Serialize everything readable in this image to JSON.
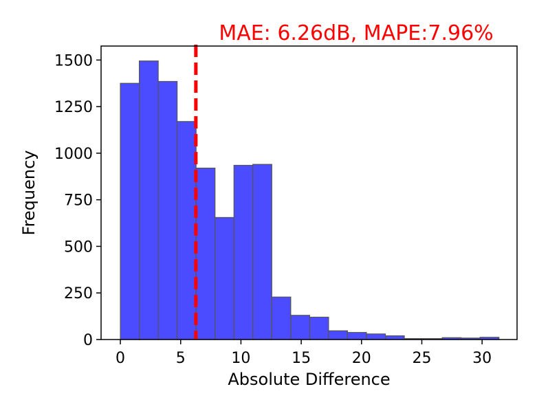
{
  "chart_data": {
    "type": "bar",
    "subtype": "histogram",
    "xlabel": "Absolute Difference",
    "ylabel": "Frequency",
    "xlim": [
      -1.6,
      32.9
    ],
    "ylim": [
      0,
      1575
    ],
    "xticks": [
      0,
      5,
      10,
      15,
      20,
      25,
      30
    ],
    "yticks": [
      0,
      250,
      500,
      750,
      1000,
      1250,
      1500
    ],
    "bin_edges": [
      0,
      1.57,
      3.14,
      4.71,
      6.28,
      7.85,
      9.42,
      10.99,
      12.56,
      14.13,
      15.7,
      17.27,
      18.84,
      20.41,
      21.98,
      23.55,
      25.12,
      26.69,
      28.26,
      29.83,
      31.4
    ],
    "values": [
      1375,
      1495,
      1385,
      1170,
      920,
      655,
      935,
      940,
      228,
      130,
      120,
      47,
      38,
      30,
      20,
      5,
      5,
      10,
      8,
      12
    ],
    "bar_color": "#4b4bff",
    "bar_edge_color": "#555555",
    "annotation": {
      "text": "MAE: 6.26dB, MAPE:7.96%",
      "line_x": 6.26,
      "color": "#ff0000",
      "line_style": "dashed"
    },
    "grid": false,
    "legend": "none"
  }
}
